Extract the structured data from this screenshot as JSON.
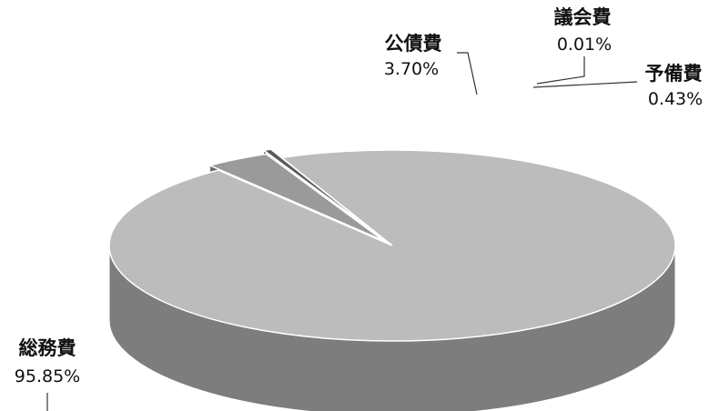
{
  "chart_data": {
    "type": "pie",
    "title": "",
    "categories": [
      "総務費",
      "公債費",
      "議会費",
      "予備費"
    ],
    "values": [
      95.85,
      3.7,
      0.01,
      0.43
    ],
    "value_labels": [
      "95.85%",
      "3.70%",
      "0.01%",
      "0.43%"
    ],
    "unit": "%",
    "three_d": true,
    "exploded": [
      "公債費",
      "議会費",
      "予備費"
    ],
    "legend": "none",
    "colors": {
      "top": [
        "#bcbcbc",
        "#9a9a9a",
        "#a6a6a6",
        "#5a5a5a"
      ],
      "side": [
        "#7d7d7d",
        "#6a6a6a",
        "#707070",
        "#3c3c3c"
      ],
      "outline": "#ffffff",
      "leader": "#333333"
    }
  }
}
